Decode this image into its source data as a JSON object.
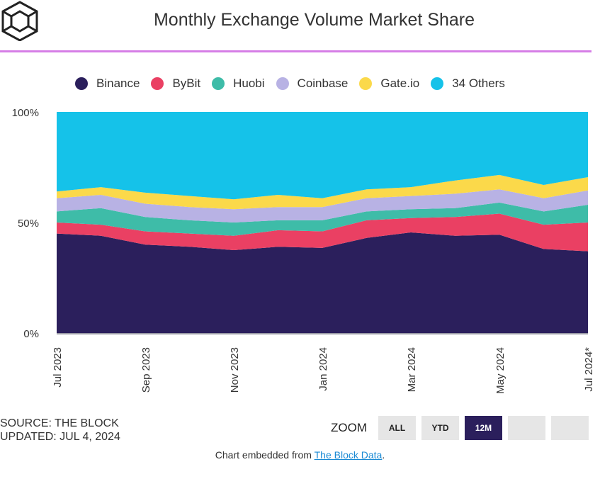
{
  "header": {
    "title": "Monthly Exchange Volume Market Share"
  },
  "colors": {
    "binance": "#2b1f5c",
    "bybit": "#ea4063",
    "huobi": "#3ebca8",
    "coinbase": "#b8b2e4",
    "gateio": "#fbd94a",
    "others": "#15c2e9",
    "accent_line": "#d67ee6"
  },
  "legend": [
    {
      "name": "Binance",
      "color": "#2b1f5c"
    },
    {
      "name": "ByBit",
      "color": "#ea4063"
    },
    {
      "name": "Huobi",
      "color": "#3ebca8"
    },
    {
      "name": "Coinbase",
      "color": "#b8b2e4"
    },
    {
      "name": "Gate.io",
      "color": "#fbd94a"
    },
    {
      "name": "34 Others",
      "color": "#15c2e9"
    }
  ],
  "chart_data": {
    "type": "area",
    "stacked": true,
    "title": "Monthly Exchange Volume Market Share",
    "x": [
      "Jul 2023",
      "Aug 2023",
      "Sep 2023",
      "Oct 2023",
      "Nov 2023",
      "Dec 2023",
      "Jan 2024",
      "Feb 2024",
      "Mar 2024",
      "Apr 2024",
      "May 2024",
      "Jun 2024",
      "Jul 2024*"
    ],
    "x_tick_labels": [
      "Jul 2023",
      "Sep 2023",
      "Nov 2023",
      "Jan 2024",
      "Mar 2024",
      "May 2024",
      "Jul 2024*"
    ],
    "y_tick_labels": [
      "100%",
      "50%",
      "0%"
    ],
    "ylim": [
      0,
      100
    ],
    "legend_position": "top",
    "series": [
      {
        "name": "Binance",
        "values": [
          45,
          44,
          40,
          39,
          37.5,
          39,
          38.5,
          43,
          45.5,
          44,
          44.5,
          38,
          37
        ]
      },
      {
        "name": "ByBit",
        "values": [
          5,
          5,
          6,
          6,
          6.5,
          7.5,
          7.5,
          8,
          6.5,
          8.5,
          9.5,
          11,
          13
        ]
      },
      {
        "name": "Huobi",
        "values": [
          5,
          7.5,
          6.5,
          6,
          6,
          4.5,
          5,
          4,
          4,
          4,
          5,
          6,
          8
        ]
      },
      {
        "name": "Coinbase",
        "values": [
          6,
          6,
          6,
          6,
          6,
          6,
          6,
          6,
          6,
          6.5,
          6,
          6,
          6.5
        ]
      },
      {
        "name": "Gate.io",
        "values": [
          3,
          3.5,
          5,
          5,
          4.5,
          5.5,
          4,
          4,
          4,
          6,
          6.5,
          6,
          6
        ]
      },
      {
        "name": "34 Others",
        "values": [
          36,
          34,
          36.5,
          38,
          39.5,
          37.5,
          39,
          35,
          34,
          31,
          28.5,
          33,
          29.5
        ]
      }
    ]
  },
  "footer": {
    "source": "SOURCE: THE BLOCK",
    "updated": "UPDATED: JUL 4, 2024",
    "zoom_label": "ZOOM",
    "zoom_all": "ALL",
    "zoom_ytd": "YTD",
    "zoom_12m": "12M",
    "embed_text": "Chart embedded from ",
    "embed_link": "The Block Data",
    "embed_suffix": "."
  }
}
